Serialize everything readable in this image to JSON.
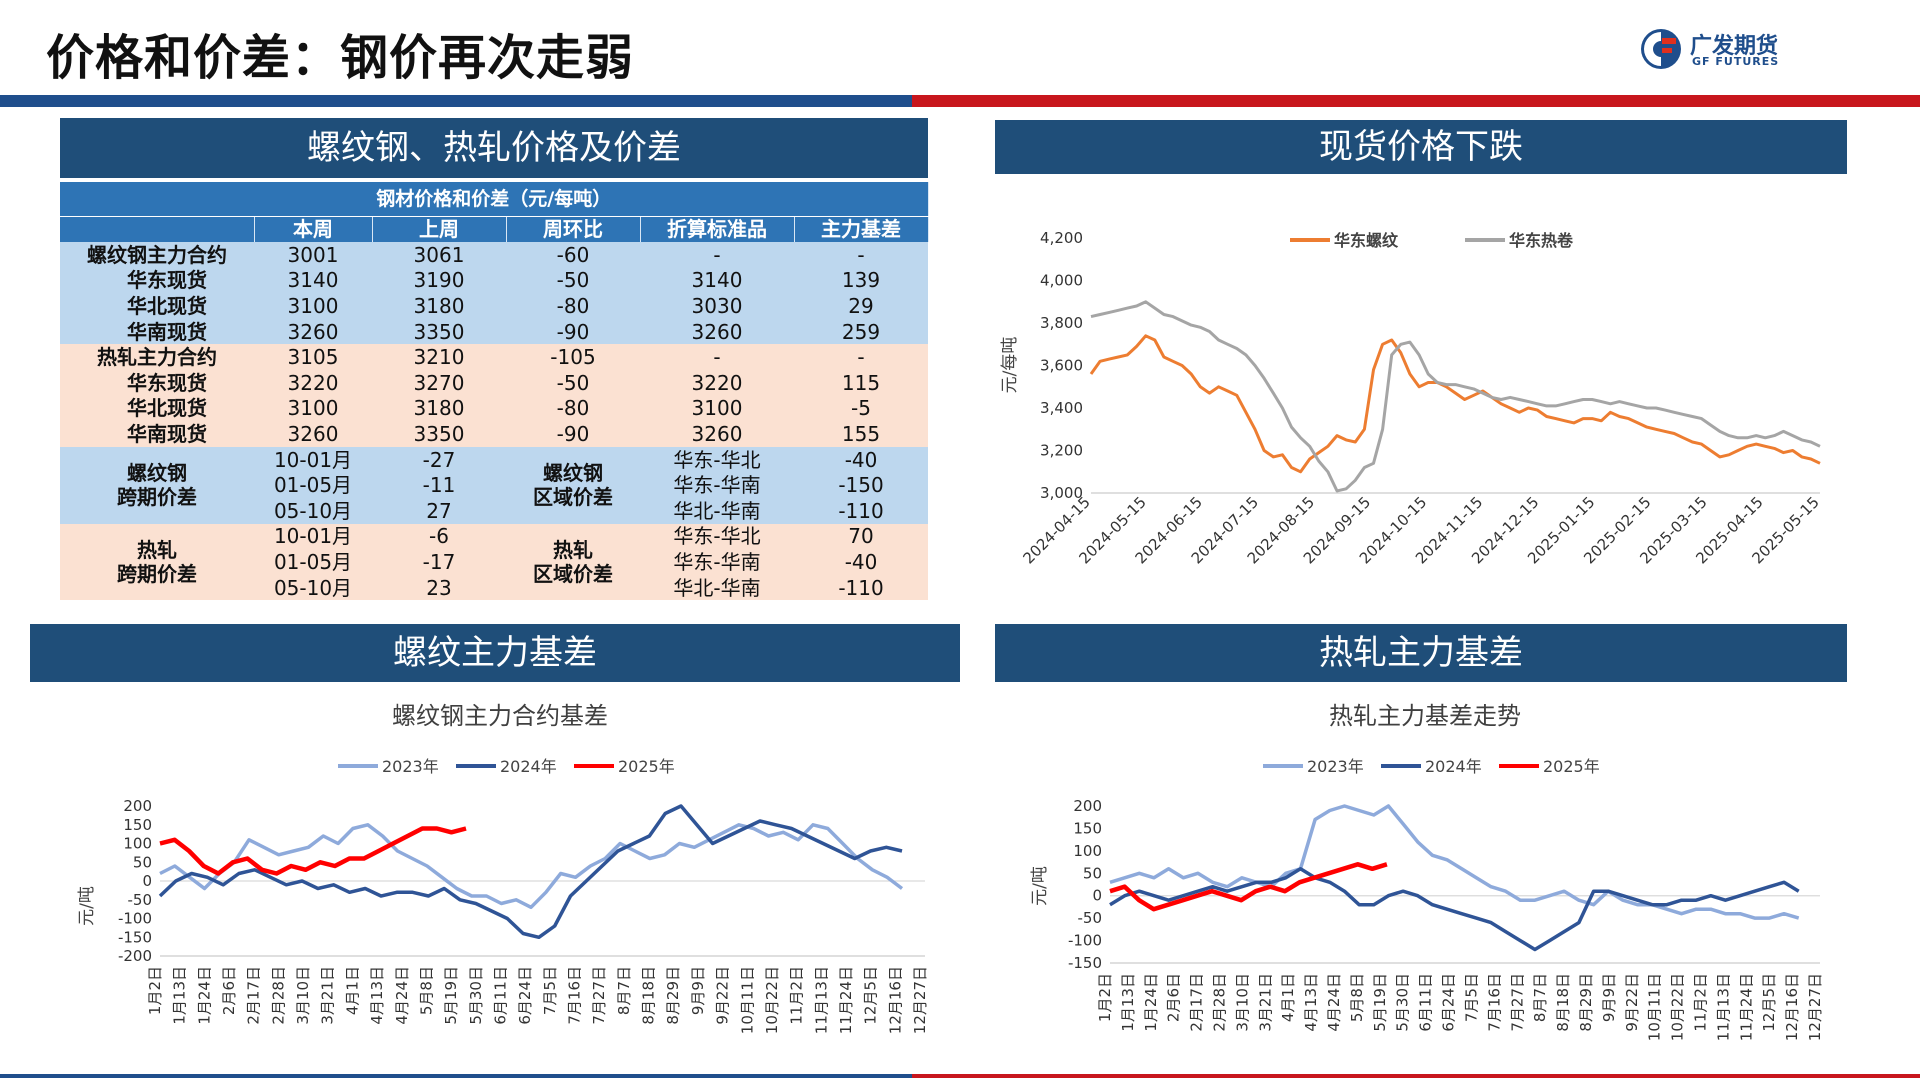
{
  "header": {
    "title": "价格和价差：钢价再次走弱",
    "logo_cn": "广发期货",
    "logo_en": "GF FUTURES"
  },
  "panels": {
    "table_header": "螺纹钢、热轧价格及价差",
    "spot_header": "现货价格下跌",
    "rebar_basis_header": "螺纹主力基差",
    "hrc_basis_header": "热轧主力基差"
  },
  "table": {
    "caption": "钢材价格和价差（元/每吨）",
    "columns": [
      "",
      "本周",
      "上周",
      "周环比",
      "折算标准品",
      "主力基差"
    ],
    "price_rows": [
      {
        "label": "螺纹钢主力合约",
        "this_week": "3001",
        "last_week": "3061",
        "wow": "-60",
        "std": "-",
        "basis": "-",
        "group": "blue"
      },
      {
        "label": "华东现货",
        "this_week": "3140",
        "last_week": "3190",
        "wow": "-50",
        "std": "3140",
        "basis": "139",
        "group": "blue"
      },
      {
        "label": "华北现货",
        "this_week": "3100",
        "last_week": "3180",
        "wow": "-80",
        "std": "3030",
        "basis": "29",
        "group": "blue"
      },
      {
        "label": "华南现货",
        "this_week": "3260",
        "last_week": "3350",
        "wow": "-90",
        "std": "3260",
        "basis": "259",
        "group": "blue"
      },
      {
        "label": "热轧主力合约",
        "this_week": "3105",
        "last_week": "3210",
        "wow": "-105",
        "std": "-",
        "basis": "-",
        "group": "pink"
      },
      {
        "label": "华东现货",
        "this_week": "3220",
        "last_week": "3270",
        "wow": "-50",
        "std": "3220",
        "basis": "115",
        "group": "pink"
      },
      {
        "label": "华北现货",
        "this_week": "3100",
        "last_week": "3180",
        "wow": "-80",
        "std": "3100",
        "basis": "-5",
        "group": "pink"
      },
      {
        "label": "华南现货",
        "this_week": "3260",
        "last_week": "3350",
        "wow": "-90",
        "std": "3260",
        "basis": "155",
        "group": "pink"
      }
    ],
    "spread_groups": [
      {
        "label_line1": "螺纹钢",
        "label_line2": "跨期价差",
        "region_label_line1": "螺纹钢",
        "region_label_line2": "区域价差",
        "group": "blue",
        "rows": [
          {
            "period": "10-01月",
            "period_value": "-27",
            "region": "华东-华北",
            "region_value": "-40"
          },
          {
            "period": "01-05月",
            "period_value": "-11",
            "region": "华东-华南",
            "region_value": "-150"
          },
          {
            "period": "05-10月",
            "period_value": "27",
            "region": "华北-华南",
            "region_value": "-110"
          }
        ]
      },
      {
        "label_line1": "热轧",
        "label_line2": "跨期价差",
        "region_label_line1": "热轧",
        "region_label_line2": "区域价差",
        "group": "pink",
        "rows": [
          {
            "period": "10-01月",
            "period_value": "-6",
            "region": "华东-华北",
            "region_value": "70"
          },
          {
            "period": "01-05月",
            "period_value": "-17",
            "region": "华东-华南",
            "region_value": "-40"
          },
          {
            "period": "05-10月",
            "period_value": "23",
            "region": "华北-华南",
            "region_value": "-110"
          }
        ]
      }
    ]
  },
  "chart_data": [
    {
      "type": "line",
      "id": "spot",
      "title": "",
      "ylabel": "元/每吨",
      "ylim": [
        3000,
        4200
      ],
      "yticks": [
        "3,000",
        "3,200",
        "3,400",
        "3,600",
        "3,800",
        "4,000",
        "4,200"
      ],
      "xticks": [
        "2024-04-15",
        "2024-05-15",
        "2024-06-15",
        "2024-07-15",
        "2024-08-15",
        "2024-09-15",
        "2024-10-15",
        "2024-11-15",
        "2024-12-15",
        "2025-01-15",
        "2025-02-15",
        "2025-03-15",
        "2025-04-15",
        "2025-05-15"
      ],
      "legend_position": "top",
      "series": [
        {
          "name": "华东螺纹",
          "color": "#ed7d31",
          "values": [
            3560,
            3620,
            3630,
            3640,
            3650,
            3690,
            3740,
            3720,
            3640,
            3620,
            3600,
            3560,
            3500,
            3470,
            3500,
            3480,
            3460,
            3380,
            3300,
            3200,
            3170,
            3180,
            3120,
            3100,
            3160,
            3190,
            3220,
            3270,
            3250,
            3240,
            3300,
            3580,
            3700,
            3720,
            3660,
            3560,
            3500,
            3520,
            3520,
            3500,
            3470,
            3440,
            3460,
            3480,
            3450,
            3420,
            3400,
            3380,
            3400,
            3390,
            3360,
            3350,
            3340,
            3330,
            3350,
            3350,
            3340,
            3380,
            3360,
            3350,
            3330,
            3310,
            3300,
            3290,
            3280,
            3260,
            3240,
            3230,
            3200,
            3170,
            3180,
            3200,
            3220,
            3230,
            3220,
            3210,
            3190,
            3200,
            3170,
            3160,
            3140
          ]
        },
        {
          "name": "华东热卷",
          "color": "#a5a5a5",
          "values": [
            3830,
            3840,
            3850,
            3860,
            3870,
            3880,
            3900,
            3870,
            3840,
            3830,
            3810,
            3790,
            3780,
            3760,
            3720,
            3700,
            3680,
            3650,
            3600,
            3540,
            3470,
            3400,
            3310,
            3260,
            3220,
            3150,
            3100,
            3010,
            3020,
            3060,
            3120,
            3140,
            3300,
            3650,
            3700,
            3710,
            3650,
            3560,
            3520,
            3510,
            3510,
            3500,
            3490,
            3470,
            3450,
            3440,
            3450,
            3440,
            3430,
            3420,
            3410,
            3410,
            3420,
            3430,
            3440,
            3440,
            3430,
            3420,
            3430,
            3420,
            3410,
            3400,
            3400,
            3390,
            3380,
            3370,
            3360,
            3350,
            3320,
            3290,
            3270,
            3260,
            3260,
            3270,
            3260,
            3270,
            3290,
            3270,
            3250,
            3240,
            3220
          ]
        }
      ]
    },
    {
      "type": "line",
      "id": "rebar_basis",
      "title": "螺纹钢主力合约基差",
      "ylabel": "元/吨",
      "ylim": [
        -200,
        200
      ],
      "yticks": [
        "-200",
        "-150",
        "-100",
        "-50",
        "0",
        "50",
        "100",
        "150",
        "200"
      ],
      "xticks": [
        "1月2日",
        "1月13日",
        "1月24日",
        "2月6日",
        "2月17日",
        "2月28日",
        "3月10日",
        "3月21日",
        "4月1日",
        "4月13日",
        "4月24日",
        "5月8日",
        "5月19日",
        "5月30日",
        "6月11日",
        "6月24日",
        "7月5日",
        "7月16日",
        "7月27日",
        "8月7日",
        "8月18日",
        "8月29日",
        "9月9日",
        "9月22日",
        "10月11日",
        "10月22日",
        "11月2日",
        "11月13日",
        "11月24日",
        "12月5日",
        "12月16日",
        "12月27日"
      ],
      "legend_position": "top",
      "series": [
        {
          "name": "2023年",
          "color": "#8eaadb",
          "values": [
            20,
            40,
            10,
            -20,
            20,
            50,
            110,
            90,
            70,
            80,
            90,
            120,
            100,
            140,
            150,
            120,
            80,
            60,
            40,
            10,
            -20,
            -40,
            -40,
            -60,
            -50,
            -70,
            -30,
            20,
            10,
            40,
            60,
            100,
            80,
            60,
            70,
            100,
            90,
            110,
            130,
            150,
            140,
            120,
            130,
            110,
            150,
            140,
            100,
            60,
            30,
            10,
            -20
          ]
        },
        {
          "name": "2024年",
          "color": "#2f5496",
          "values": [
            -40,
            0,
            20,
            10,
            -10,
            20,
            30,
            10,
            -10,
            0,
            -20,
            -10,
            -30,
            -20,
            -40,
            -30,
            -30,
            -40,
            -20,
            -50,
            -60,
            -80,
            -100,
            -140,
            -150,
            -120,
            -40,
            0,
            40,
            80,
            100,
            120,
            180,
            200,
            150,
            100,
            120,
            140,
            160,
            150,
            140,
            120,
            100,
            80,
            60,
            80,
            90,
            80
          ]
        },
        {
          "name": "2025年",
          "color": "#ff0000",
          "values": [
            100,
            110,
            80,
            40,
            20,
            50,
            60,
            30,
            20,
            40,
            30,
            50,
            40,
            60,
            60,
            80,
            100,
            120,
            140,
            140,
            130,
            140
          ]
        }
      ]
    },
    {
      "type": "line",
      "id": "hrc_basis",
      "title": "热轧主力基差走势",
      "ylabel": "元/吨",
      "ylim": [
        -150,
        200
      ],
      "yticks": [
        "-150",
        "-100",
        "-50",
        "0",
        "50",
        "100",
        "150",
        "200"
      ],
      "xticks": [
        "1月2日",
        "1月13日",
        "1月24日",
        "2月6日",
        "2月17日",
        "2月28日",
        "3月10日",
        "3月21日",
        "4月1日",
        "4月13日",
        "4月24日",
        "5月8日",
        "5月19日",
        "5月30日",
        "6月11日",
        "6月24日",
        "7月5日",
        "7月16日",
        "7月27日",
        "8月7日",
        "8月18日",
        "8月29日",
        "9月9日",
        "9月22日",
        "10月11日",
        "10月22日",
        "11月2日",
        "11月13日",
        "11月24日",
        "12月5日",
        "12月16日",
        "12月27日"
      ],
      "legend_position": "top",
      "series": [
        {
          "name": "2023年",
          "color": "#8eaadb",
          "values": [
            30,
            40,
            50,
            40,
            60,
            40,
            50,
            30,
            20,
            40,
            30,
            20,
            50,
            60,
            170,
            190,
            200,
            190,
            180,
            200,
            160,
            120,
            90,
            80,
            60,
            40,
            20,
            10,
            -10,
            -10,
            0,
            10,
            -10,
            -20,
            10,
            -10,
            -20,
            -20,
            -30,
            -40,
            -30,
            -30,
            -40,
            -40,
            -50,
            -50,
            -40,
            -50
          ]
        },
        {
          "name": "2024年",
          "color": "#2f5496",
          "values": [
            -20,
            0,
            10,
            0,
            -10,
            0,
            10,
            20,
            10,
            20,
            30,
            30,
            40,
            60,
            40,
            30,
            10,
            -20,
            -20,
            0,
            10,
            0,
            -20,
            -30,
            -40,
            -50,
            -60,
            -80,
            -100,
            -120,
            -100,
            -80,
            -60,
            10,
            10,
            0,
            -10,
            -20,
            -20,
            -10,
            -10,
            0,
            -10,
            0,
            10,
            20,
            30,
            10
          ]
        },
        {
          "name": "2025年",
          "color": "#ff0000",
          "values": [
            10,
            20,
            -10,
            -30,
            -20,
            -10,
            0,
            10,
            0,
            -10,
            10,
            20,
            10,
            30,
            40,
            50,
            60,
            70,
            60,
            70
          ]
        }
      ]
    }
  ]
}
